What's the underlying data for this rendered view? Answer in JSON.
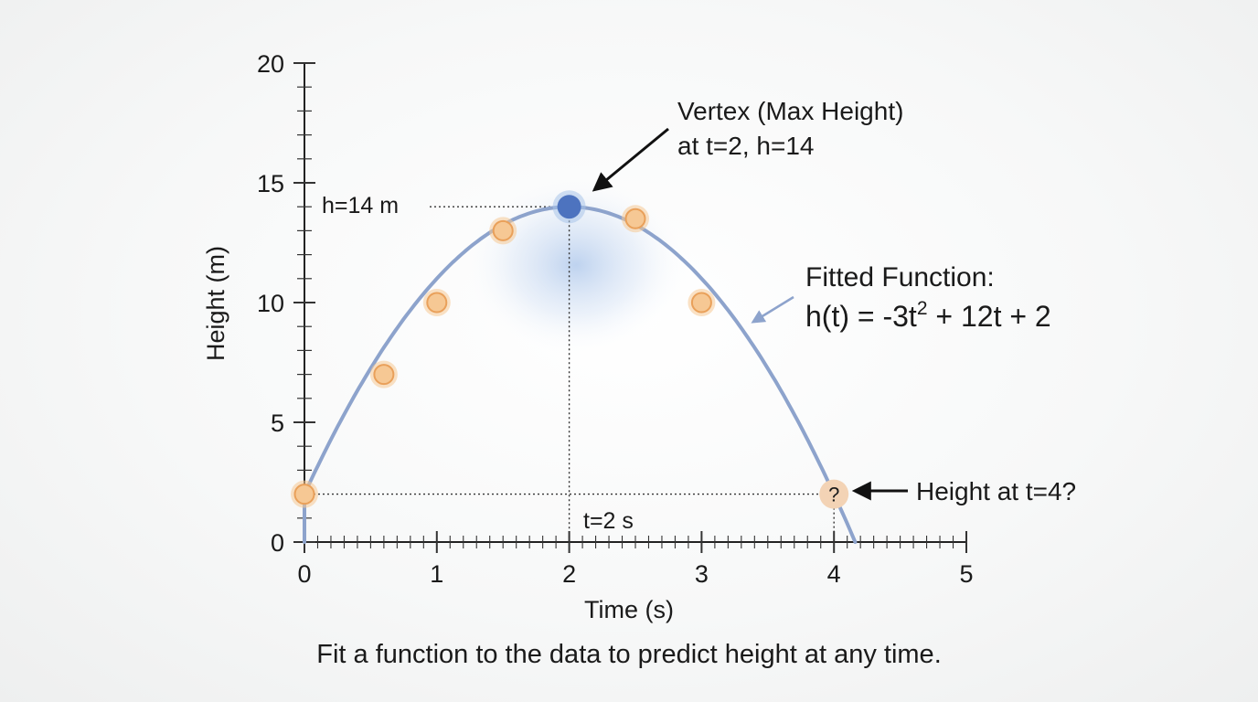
{
  "chart_data": {
    "type": "scatter",
    "x": [
      0,
      0.6,
      1,
      1.5,
      2,
      2.5,
      3,
      4
    ],
    "y": [
      2,
      7,
      10,
      13,
      14,
      13.5,
      10,
      2
    ],
    "xlabel": "Time (s)",
    "ylabel": "Height (m)",
    "xlim": [
      0,
      5
    ],
    "ylim": [
      0,
      20
    ],
    "xticks": [
      0,
      1,
      2,
      3,
      4,
      5
    ],
    "yticks": [
      0,
      5,
      10,
      15,
      20
    ],
    "fitted_function": {
      "a": -3,
      "b": 12,
      "c": 2
    },
    "vertex": {
      "x": 2,
      "y": 14
    },
    "unknown_point": {
      "x": 4,
      "label": "?"
    },
    "annotations": {
      "vertex_line1": "Vertex (Max Height)",
      "vertex_line2": "at t=2, h=14",
      "h_ref": "h=14 m",
      "t_ref": "t=2 s",
      "fit_title": "Fitted Function:",
      "fit_eq_pre": "h(t) = -3t",
      "fit_eq_sup": "2",
      "fit_eq_post": " + 12t + 2",
      "question": "Height at t=4?"
    },
    "colors": {
      "curve": "#8da3cc",
      "point_fill": "#f6c894",
      "point_stroke": "#e9a05a",
      "vertex": "#4d73bf",
      "glow": "#a9c4ea",
      "question_fill": "#f3d3b5"
    }
  },
  "caption": "Fit a function to the data to predict height at any time."
}
